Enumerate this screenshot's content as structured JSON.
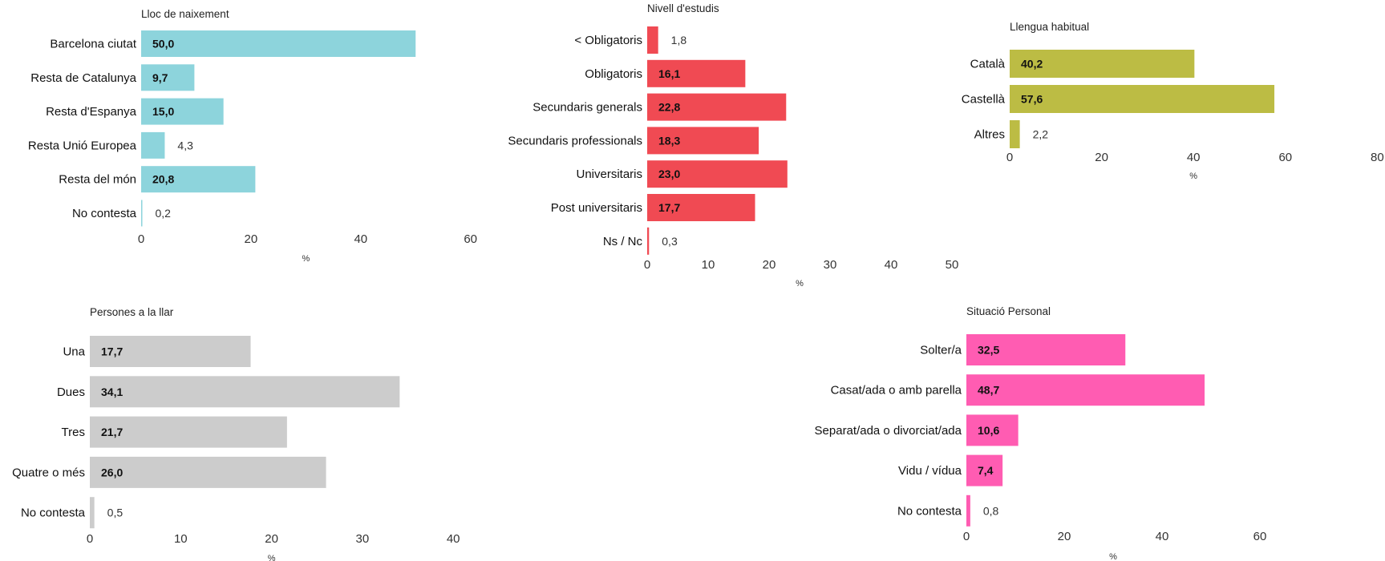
{
  "colors": {
    "lloc": "#8dd4dc",
    "estudis": "#f04a53",
    "llengua": "#bcbc44",
    "persones": "#cccccc",
    "situacio": "#ff5cb2"
  },
  "chart_data": [
    {
      "id": "lloc",
      "type": "bar",
      "orientation": "horizontal",
      "title": "Lloc de naixement",
      "xlabel": "%",
      "categories": [
        "Barcelona ciutat",
        "Resta de Catalunya",
        "Resta d'Espanya",
        "Resta Unió Europea",
        "Resta del món",
        "No contesta"
      ],
      "values": [
        50.0,
        9.7,
        15.0,
        4.3,
        20.8,
        0.2
      ],
      "value_labels": [
        "50,0",
        "9,7",
        "15,0",
        "4,3",
        "20,8",
        "0,2"
      ],
      "xlim": [
        0,
        60
      ],
      "ticks": [
        0,
        20,
        40,
        60
      ],
      "tick_labels": [
        "0",
        "20",
        "40",
        "60"
      ],
      "grid": false,
      "color": "#8dd4dc"
    },
    {
      "id": "estudis",
      "type": "bar",
      "orientation": "horizontal",
      "title": "Nivell d'estudis",
      "xlabel": "%",
      "categories": [
        "< Obligatoris",
        "Obligatoris",
        "Secundaris generals",
        "Secundaris professionals",
        "Universitaris",
        "Post universitaris",
        "Ns / Nc"
      ],
      "values": [
        1.8,
        16.1,
        22.8,
        18.3,
        23.0,
        17.7,
        0.3
      ],
      "value_labels": [
        "1,8",
        "16,1",
        "22,8",
        "18,3",
        "23,0",
        "17,7",
        "0,3"
      ],
      "xlim": [
        0,
        50
      ],
      "ticks": [
        0,
        10,
        20,
        30,
        40,
        50
      ],
      "tick_labels": [
        "0",
        "10",
        "20",
        "30",
        "40",
        "50"
      ],
      "grid": false,
      "color": "#f04a53"
    },
    {
      "id": "llengua",
      "type": "bar",
      "orientation": "horizontal",
      "title": "Llengua habitual",
      "xlabel": "%",
      "categories": [
        "Català",
        "Castellà",
        "Altres"
      ],
      "values": [
        40.2,
        57.6,
        2.2
      ],
      "value_labels": [
        "40,2",
        "57,6",
        "2,2"
      ],
      "xlim": [
        0,
        80
      ],
      "ticks": [
        0,
        20,
        40,
        60,
        80
      ],
      "tick_labels": [
        "0",
        "20",
        "40",
        "60",
        "80"
      ],
      "grid": false,
      "color": "#bcbc44"
    },
    {
      "id": "persones",
      "type": "bar",
      "orientation": "horizontal",
      "title": "Persones a la llar",
      "xlabel": "%",
      "categories": [
        "Una",
        "Dues",
        "Tres",
        "Quatre o més",
        "No contesta"
      ],
      "values": [
        17.7,
        34.1,
        21.7,
        26.0,
        0.5
      ],
      "value_labels": [
        "17,7",
        "34,1",
        "21,7",
        "26,0",
        "0,5"
      ],
      "xlim": [
        0,
        40
      ],
      "ticks": [
        0,
        10,
        20,
        30,
        40
      ],
      "tick_labels": [
        "0",
        "10",
        "20",
        "30",
        "40"
      ],
      "grid": false,
      "color": "#cccccc"
    },
    {
      "id": "situacio",
      "type": "bar",
      "orientation": "horizontal",
      "title": "Situació Personal",
      "xlabel": "%",
      "categories": [
        "Solter/a",
        "Casat/ada o amb parella",
        "Separat/ada o divorciat/ada",
        "Vidu / vídua",
        "No contesta"
      ],
      "values": [
        32.5,
        48.7,
        10.6,
        7.4,
        0.8
      ],
      "value_labels": [
        "32,5",
        "48,7",
        "10,6",
        "7,4",
        "0,8"
      ],
      "xlim": [
        0,
        60
      ],
      "ticks": [
        0,
        20,
        40,
        60
      ],
      "tick_labels": [
        "0",
        "20",
        "40",
        "60"
      ],
      "grid": false,
      "color": "#ff5cb2"
    }
  ]
}
